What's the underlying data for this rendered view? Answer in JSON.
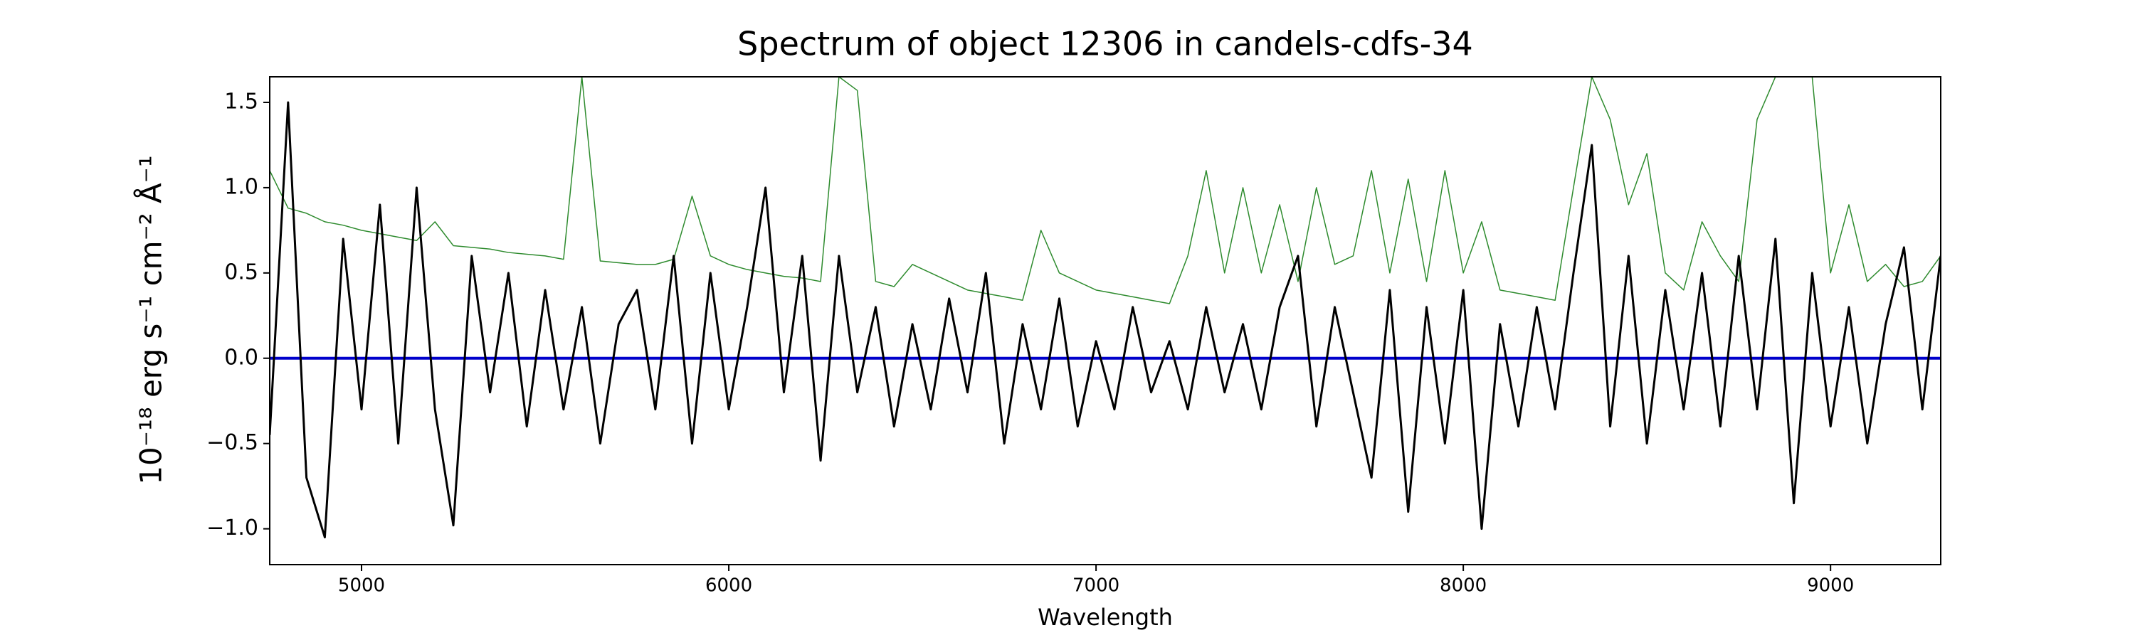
{
  "chart_data": {
    "type": "line",
    "title": "Spectrum of object 12306 in candels-cdfs-34",
    "xlabel": "Wavelength",
    "ylabel": "10⁻¹⁸ erg s⁻¹ cm⁻² Å⁻¹",
    "x": [
      4750,
      4800,
      4850,
      4900,
      4950,
      5000,
      5050,
      5100,
      5150,
      5200,
      5250,
      5300,
      5350,
      5400,
      5450,
      5500,
      5550,
      5600,
      5650,
      5700,
      5750,
      5800,
      5850,
      5900,
      5950,
      6000,
      6050,
      6100,
      6150,
      6200,
      6250,
      6300,
      6350,
      6400,
      6450,
      6500,
      6550,
      6600,
      6650,
      6700,
      6750,
      6800,
      6850,
      6900,
      6950,
      7000,
      7050,
      7100,
      7150,
      7200,
      7250,
      7300,
      7350,
      7400,
      7450,
      7500,
      7550,
      7600,
      7650,
      7700,
      7750,
      7800,
      7850,
      7900,
      7950,
      8000,
      8050,
      8100,
      8150,
      8200,
      8250,
      8300,
      8350,
      8400,
      8450,
      8500,
      8550,
      8600,
      8650,
      8700,
      8750,
      8800,
      8850,
      8900,
      8950,
      9000,
      9050,
      9100,
      9150,
      9200,
      9250,
      9300
    ],
    "series": [
      {
        "color": "#2e8b2e",
        "values": [
          1.1,
          0.88,
          0.85,
          0.8,
          0.78,
          0.75,
          0.73,
          0.71,
          0.69,
          0.8,
          0.66,
          0.65,
          0.64,
          0.62,
          0.61,
          0.6,
          0.58,
          1.65,
          0.57,
          0.56,
          0.55,
          0.55,
          0.58,
          0.95,
          0.6,
          0.55,
          0.52,
          0.5,
          0.48,
          0.47,
          0.45,
          1.65,
          1.57,
          0.45,
          0.42,
          0.55,
          0.5,
          0.45,
          0.4,
          0.38,
          0.36,
          0.34,
          0.75,
          0.5,
          0.45,
          0.4,
          0.38,
          0.36,
          0.34,
          0.32,
          0.6,
          1.1,
          0.5,
          1.0,
          0.5,
          0.9,
          0.45,
          1.0,
          0.55,
          0.6,
          1.1,
          0.5,
          1.05,
          0.45,
          1.1,
          0.5,
          0.8,
          0.4,
          0.38,
          0.36,
          0.34,
          1.0,
          1.65,
          1.4,
          0.9,
          1.2,
          0.5,
          0.4,
          0.8,
          0.6,
          0.45,
          1.4,
          1.65,
          1.65,
          1.65,
          0.5,
          0.9,
          0.45,
          0.55,
          0.42,
          0.45,
          0.6
        ]
      },
      {
        "color": "#0000cc",
        "values": [
          0,
          0,
          0,
          0,
          0,
          0,
          0,
          0,
          0,
          0,
          0,
          0,
          0,
          0,
          0,
          0,
          0,
          0,
          0,
          0,
          0,
          0,
          0,
          0,
          0,
          0,
          0,
          0,
          0,
          0,
          0,
          0,
          0,
          0,
          0,
          0,
          0,
          0,
          0,
          0,
          0,
          0,
          0,
          0,
          0,
          0,
          0,
          0,
          0,
          0,
          0,
          0,
          0,
          0,
          0,
          0,
          0,
          0,
          0,
          0,
          0,
          0,
          0,
          0,
          0,
          0,
          0,
          0,
          0,
          0,
          0,
          0,
          0,
          0,
          0,
          0,
          0,
          0,
          0,
          0,
          0,
          0,
          0,
          0,
          0,
          0,
          0,
          0,
          0,
          0,
          0,
          0
        ]
      },
      {
        "color": "#000000",
        "values": [
          -0.45,
          1.5,
          -0.7,
          -1.05,
          0.7,
          -0.3,
          0.9,
          -0.5,
          1.0,
          -0.3,
          -0.98,
          0.6,
          -0.2,
          0.5,
          -0.4,
          0.4,
          -0.3,
          0.3,
          -0.5,
          0.2,
          0.4,
          -0.3,
          0.6,
          -0.5,
          0.5,
          -0.3,
          0.3,
          1.0,
          -0.2,
          0.6,
          -0.6,
          0.6,
          -0.2,
          0.3,
          -0.4,
          0.2,
          -0.3,
          0.35,
          -0.2,
          0.5,
          -0.5,
          0.2,
          -0.3,
          0.35,
          -0.4,
          0.1,
          -0.3,
          0.3,
          -0.2,
          0.1,
          -0.3,
          0.3,
          -0.2,
          0.2,
          -0.3,
          0.3,
          0.6,
          -0.4,
          0.3,
          -0.2,
          -0.7,
          0.4,
          -0.9,
          0.3,
          -0.5,
          0.4,
          -1.0,
          0.2,
          -0.4,
          0.3,
          -0.3,
          0.5,
          1.25,
          -0.4,
          0.6,
          -0.5,
          0.4,
          -0.3,
          0.5,
          -0.4,
          0.6,
          -0.3,
          0.7,
          -0.85,
          0.5,
          -0.4,
          0.3,
          -0.5,
          0.2,
          0.65,
          -0.3,
          0.6
        ]
      }
    ],
    "xlim": [
      4750,
      9300
    ],
    "ylim": [
      -1.21,
      1.65
    ],
    "xticks": [
      5000,
      6000,
      7000,
      8000,
      9000
    ],
    "yticks": [
      {
        "value": -1.0,
        "label": "−1.0"
      },
      {
        "value": -0.5,
        "label": "−0.5"
      },
      {
        "value": 0.0,
        "label": "0.0"
      },
      {
        "value": 0.5,
        "label": "0.5"
      },
      {
        "value": 1.0,
        "label": "1.0"
      },
      {
        "value": 1.5,
        "label": "1.5"
      }
    ]
  }
}
